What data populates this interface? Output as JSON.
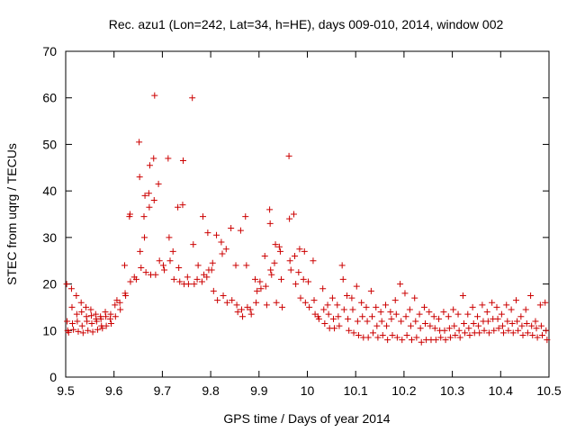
{
  "chart_data": {
    "type": "scatter",
    "title": "Rec. azu1 (Lon=242, Lat=34, h=HE), days 009-010, 2014, window 002",
    "xlabel": "GPS time / Days of year 2014",
    "ylabel": "STEC from uqrg / TECUs",
    "xlim": [
      9.5,
      10.5
    ],
    "ylim": [
      0,
      70
    ],
    "xticks": [
      "9.5",
      "9.6",
      "9.7",
      "9.8",
      "9.9",
      "10",
      "10.1",
      "10.2",
      "10.3",
      "10.4",
      "10.5"
    ],
    "yticks": [
      "0",
      "10",
      "20",
      "30",
      "40",
      "50",
      "60",
      "70"
    ],
    "grid": false,
    "marker": "+",
    "color": "#cc0000",
    "series": [
      {
        "points": [
          [
            9.502,
            20.0
          ],
          [
            9.503,
            12.0
          ],
          [
            9.504,
            10.0
          ],
          [
            9.506,
            9.6
          ],
          [
            9.512,
            19.0
          ],
          [
            9.513,
            15.0
          ],
          [
            9.514,
            11.5
          ],
          [
            9.516,
            10.2
          ],
          [
            9.522,
            17.5
          ],
          [
            9.523,
            13.5
          ],
          [
            9.524,
            12.0
          ],
          [
            9.526,
            9.8
          ],
          [
            9.532,
            16.0
          ],
          [
            9.533,
            14.0
          ],
          [
            9.534,
            11.0
          ],
          [
            9.536,
            9.5
          ],
          [
            9.542,
            15.0
          ],
          [
            9.543,
            13.0
          ],
          [
            9.544,
            12.0
          ],
          [
            9.546,
            10.0
          ],
          [
            9.552,
            14.5
          ],
          [
            9.553,
            13.2
          ],
          [
            9.554,
            11.5
          ],
          [
            9.556,
            9.7
          ],
          [
            9.562,
            13.5
          ],
          [
            9.563,
            12.5
          ],
          [
            9.564,
            12.0
          ],
          [
            9.566,
            10.2
          ],
          [
            9.572,
            13.0
          ],
          [
            9.573,
            12.5
          ],
          [
            9.574,
            11.0
          ],
          [
            9.576,
            10.5
          ],
          [
            9.582,
            14.0
          ],
          [
            9.583,
            13.0
          ],
          [
            9.584,
            11.0
          ],
          [
            9.592,
            12.5
          ],
          [
            9.593,
            13.5
          ],
          [
            9.594,
            11.5
          ],
          [
            9.602,
            15.5
          ],
          [
            9.603,
            13.0
          ],
          [
            9.606,
            16.5
          ],
          [
            9.612,
            16.0
          ],
          [
            9.613,
            14.5
          ],
          [
            9.622,
            24.0
          ],
          [
            9.623,
            18.0
          ],
          [
            9.624,
            17.5
          ],
          [
            9.632,
            34.5
          ],
          [
            9.633,
            35.0
          ],
          [
            9.634,
            20.5
          ],
          [
            9.642,
            21.5
          ],
          [
            9.646,
            21.0
          ],
          [
            9.652,
            50.5
          ],
          [
            9.653,
            43.0
          ],
          [
            9.654,
            27.0
          ],
          [
            9.656,
            23.5
          ],
          [
            9.662,
            34.5
          ],
          [
            9.663,
            30.0
          ],
          [
            9.664,
            39.0
          ],
          [
            9.666,
            22.5
          ],
          [
            9.672,
            39.5
          ],
          [
            9.673,
            36.5
          ],
          [
            9.674,
            45.5
          ],
          [
            9.676,
            22.0
          ],
          [
            9.682,
            47.0
          ],
          [
            9.683,
            38.0
          ],
          [
            9.684,
            60.5
          ],
          [
            9.686,
            22.0
          ],
          [
            9.692,
            41.5
          ],
          [
            9.694,
            25.0
          ],
          [
            9.702,
            24.0
          ],
          [
            9.704,
            23.0
          ],
          [
            9.712,
            47.0
          ],
          [
            9.714,
            30.0
          ],
          [
            9.716,
            25.0
          ],
          [
            9.722,
            27.0
          ],
          [
            9.724,
            21.0
          ],
          [
            9.732,
            36.5
          ],
          [
            9.734,
            23.5
          ],
          [
            9.736,
            20.5
          ],
          [
            9.742,
            37.0
          ],
          [
            9.743,
            46.5
          ],
          [
            9.745,
            20.0
          ],
          [
            9.752,
            21.5
          ],
          [
            9.754,
            20.0
          ],
          [
            9.762,
            60.0
          ],
          [
            9.764,
            28.5
          ],
          [
            9.766,
            20.0
          ],
          [
            9.772,
            21.0
          ],
          [
            9.774,
            24.0
          ],
          [
            9.782,
            20.5
          ],
          [
            9.784,
            34.5
          ],
          [
            9.786,
            22.0
          ],
          [
            9.792,
            21.5
          ],
          [
            9.794,
            31.0
          ],
          [
            9.796,
            23.0
          ],
          [
            9.802,
            23.0
          ],
          [
            9.804,
            24.5
          ],
          [
            9.806,
            18.5
          ],
          [
            9.812,
            30.5
          ],
          [
            9.814,
            16.5
          ],
          [
            9.822,
            29.0
          ],
          [
            9.824,
            26.5
          ],
          [
            9.826,
            17.5
          ],
          [
            9.832,
            27.5
          ],
          [
            9.834,
            16.0
          ],
          [
            9.842,
            32.0
          ],
          [
            9.844,
            16.5
          ],
          [
            9.852,
            24.0
          ],
          [
            9.854,
            15.5
          ],
          [
            9.856,
            14.0
          ],
          [
            9.862,
            31.5
          ],
          [
            9.864,
            14.5
          ],
          [
            9.866,
            13.0
          ],
          [
            9.872,
            34.5
          ],
          [
            9.874,
            24.0
          ],
          [
            9.876,
            15.0
          ],
          [
            9.882,
            14.5
          ],
          [
            9.884,
            13.5
          ],
          [
            9.892,
            21.0
          ],
          [
            9.894,
            16.0
          ],
          [
            9.896,
            18.5
          ],
          [
            9.902,
            20.5
          ],
          [
            9.904,
            19.0
          ],
          [
            9.912,
            26.0
          ],
          [
            9.914,
            19.5
          ],
          [
            9.916,
            15.5
          ],
          [
            9.922,
            36.0
          ],
          [
            9.923,
            33.0
          ],
          [
            9.924,
            23.0
          ],
          [
            9.926,
            22.0
          ],
          [
            9.932,
            24.5
          ],
          [
            9.934,
            28.5
          ],
          [
            9.936,
            16.0
          ],
          [
            9.942,
            28.0
          ],
          [
            9.944,
            27.0
          ],
          [
            9.946,
            21.0
          ],
          [
            9.948,
            15.0
          ],
          [
            9.962,
            47.5
          ],
          [
            9.963,
            34.0
          ],
          [
            9.964,
            25.0
          ],
          [
            9.966,
            23.0
          ],
          [
            9.972,
            35.0
          ],
          [
            9.974,
            26.0
          ],
          [
            9.976,
            20.0
          ],
          [
            9.982,
            22.5
          ],
          [
            9.984,
            27.5
          ],
          [
            9.986,
            17.0
          ],
          [
            9.992,
            21.0
          ],
          [
            9.994,
            27.0
          ],
          [
            9.996,
            16.0
          ],
          [
            10.002,
            20.5
          ],
          [
            10.004,
            15.0
          ],
          [
            10.012,
            25.0
          ],
          [
            10.014,
            16.5
          ],
          [
            10.016,
            13.5
          ],
          [
            10.022,
            13.0
          ],
          [
            10.024,
            12.5
          ],
          [
            10.032,
            19.0
          ],
          [
            10.034,
            14.5
          ],
          [
            10.036,
            11.5
          ],
          [
            10.042,
            15.5
          ],
          [
            10.044,
            13.5
          ],
          [
            10.046,
            10.5
          ],
          [
            10.052,
            17.0
          ],
          [
            10.054,
            12.5
          ],
          [
            10.056,
            10.5
          ],
          [
            10.062,
            15.5
          ],
          [
            10.064,
            13.0
          ],
          [
            10.066,
            11.0
          ],
          [
            10.072,
            24.0
          ],
          [
            10.074,
            21.0
          ],
          [
            10.076,
            14.5
          ],
          [
            10.082,
            17.5
          ],
          [
            10.084,
            12.5
          ],
          [
            10.086,
            10.0
          ],
          [
            10.092,
            17.0
          ],
          [
            10.094,
            14.5
          ],
          [
            10.096,
            9.5
          ],
          [
            10.102,
            19.5
          ],
          [
            10.104,
            12.0
          ],
          [
            10.106,
            9.0
          ],
          [
            10.112,
            16.0
          ],
          [
            10.114,
            13.0
          ],
          [
            10.116,
            8.5
          ],
          [
            10.122,
            15.0
          ],
          [
            10.124,
            12.0
          ],
          [
            10.126,
            8.5
          ],
          [
            10.132,
            18.5
          ],
          [
            10.134,
            13.0
          ],
          [
            10.136,
            9.5
          ],
          [
            10.142,
            15.0
          ],
          [
            10.144,
            11.0
          ],
          [
            10.146,
            8.5
          ],
          [
            10.152,
            14.0
          ],
          [
            10.154,
            12.0
          ],
          [
            10.156,
            9.0
          ],
          [
            10.162,
            15.5
          ],
          [
            10.164,
            11.0
          ],
          [
            10.166,
            8.0
          ],
          [
            10.172,
            14.0
          ],
          [
            10.174,
            12.5
          ],
          [
            10.176,
            9.0
          ],
          [
            10.182,
            16.5
          ],
          [
            10.184,
            13.5
          ],
          [
            10.186,
            8.5
          ],
          [
            10.192,
            20.0
          ],
          [
            10.194,
            12.0
          ],
          [
            10.196,
            8.0
          ],
          [
            10.202,
            18.0
          ],
          [
            10.204,
            13.0
          ],
          [
            10.206,
            9.0
          ],
          [
            10.212,
            14.5
          ],
          [
            10.214,
            11.0
          ],
          [
            10.216,
            8.0
          ],
          [
            10.222,
            17.0
          ],
          [
            10.224,
            12.0
          ],
          [
            10.226,
            8.5
          ],
          [
            10.232,
            13.5
          ],
          [
            10.234,
            10.5
          ],
          [
            10.236,
            7.5
          ],
          [
            10.242,
            15.0
          ],
          [
            10.244,
            11.5
          ],
          [
            10.246,
            8.0
          ],
          [
            10.252,
            14.0
          ],
          [
            10.254,
            11.0
          ],
          [
            10.256,
            8.0
          ],
          [
            10.262,
            13.0
          ],
          [
            10.264,
            10.5
          ],
          [
            10.266,
            8.0
          ],
          [
            10.272,
            12.5
          ],
          [
            10.274,
            10.0
          ],
          [
            10.276,
            8.5
          ],
          [
            10.282,
            14.0
          ],
          [
            10.284,
            10.0
          ],
          [
            10.286,
            8.0
          ],
          [
            10.292,
            13.0
          ],
          [
            10.294,
            10.5
          ],
          [
            10.296,
            8.5
          ],
          [
            10.302,
            14.5
          ],
          [
            10.304,
            11.0
          ],
          [
            10.306,
            9.0
          ],
          [
            10.312,
            13.5
          ],
          [
            10.314,
            10.0
          ],
          [
            10.316,
            8.5
          ],
          [
            10.322,
            17.5
          ],
          [
            10.324,
            11.5
          ],
          [
            10.326,
            9.5
          ],
          [
            10.332,
            13.5
          ],
          [
            10.334,
            10.5
          ],
          [
            10.336,
            9.0
          ],
          [
            10.342,
            15.0
          ],
          [
            10.344,
            11.5
          ],
          [
            10.346,
            9.5
          ],
          [
            10.352,
            13.0
          ],
          [
            10.354,
            11.0
          ],
          [
            10.356,
            9.5
          ],
          [
            10.362,
            15.5
          ],
          [
            10.364,
            12.0
          ],
          [
            10.366,
            10.0
          ],
          [
            10.372,
            14.0
          ],
          [
            10.374,
            12.0
          ],
          [
            10.376,
            9.5
          ],
          [
            10.382,
            16.0
          ],
          [
            10.384,
            12.5
          ],
          [
            10.386,
            10.0
          ],
          [
            10.392,
            15.0
          ],
          [
            10.394,
            12.5
          ],
          [
            10.396,
            10.5
          ],
          [
            10.402,
            13.5
          ],
          [
            10.404,
            11.0
          ],
          [
            10.406,
            9.5
          ],
          [
            10.412,
            15.5
          ],
          [
            10.414,
            12.0
          ],
          [
            10.416,
            10.0
          ],
          [
            10.422,
            14.5
          ],
          [
            10.424,
            11.5
          ],
          [
            10.426,
            9.5
          ],
          [
            10.432,
            16.5
          ],
          [
            10.434,
            12.0
          ],
          [
            10.436,
            10.0
          ],
          [
            10.442,
            13.0
          ],
          [
            10.444,
            11.0
          ],
          [
            10.446,
            9.0
          ],
          [
            10.452,
            14.5
          ],
          [
            10.454,
            11.5
          ],
          [
            10.456,
            9.5
          ],
          [
            10.462,
            17.5
          ],
          [
            10.464,
            11.0
          ],
          [
            10.466,
            9.0
          ],
          [
            10.472,
            12.0
          ],
          [
            10.474,
            10.5
          ],
          [
            10.476,
            8.5
          ],
          [
            10.482,
            15.5
          ],
          [
            10.484,
            11.0
          ],
          [
            10.486,
            9.0
          ],
          [
            10.492,
            16.0
          ],
          [
            10.494,
            10.0
          ],
          [
            10.496,
            8.0
          ]
        ]
      }
    ]
  }
}
